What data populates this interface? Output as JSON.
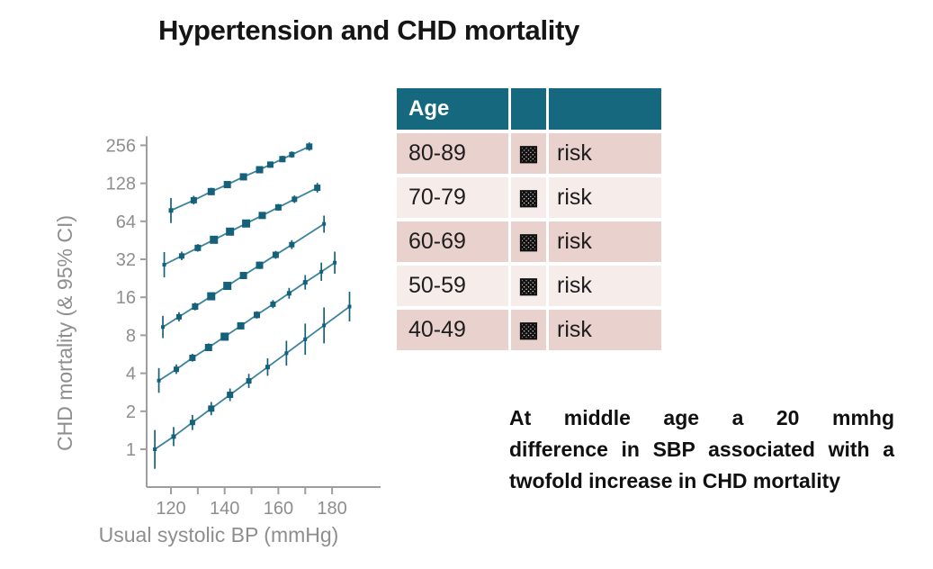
{
  "title": "Hypertension and CHD mortality",
  "colors": {
    "teal_header": "#15687e",
    "row_dark": "#e9d1cd",
    "row_light": "#f6ecea",
    "line": "#3b849b",
    "marker": "#15607a",
    "axis": "#9e9e9e",
    "axis_text": "#8e8e8e",
    "text": "#101010"
  },
  "table": {
    "columns": [
      "Age",
      "",
      ""
    ],
    "rows": [
      {
        "age": "80-89",
        "glyph": "▩",
        "label": "risk"
      },
      {
        "age": "70-79",
        "glyph": "▩",
        "label": "risk"
      },
      {
        "age": "60-69",
        "glyph": "▩",
        "label": "risk"
      },
      {
        "age": "50-59",
        "glyph": "▩",
        "label": "risk"
      },
      {
        "age": "40-49",
        "glyph": "▩",
        "label": "risk"
      }
    ]
  },
  "note": {
    "lines": [
      "At middle age a 20 mmhg",
      "difference in SBP associated with a",
      "twofold increase in CHD mortality"
    ]
  },
  "chart_data": {
    "type": "scatter",
    "title": "",
    "xlabel": "Usual systolic BP (mmHg)",
    "ylabel": "CHD mortality (& 95% CI)",
    "x_ticks_labeled": [
      120,
      140,
      160,
      180
    ],
    "x_ticks_all": [
      120,
      130,
      140,
      150,
      160,
      170,
      180
    ],
    "y_scale": "log2",
    "y_ticks": [
      1,
      2,
      4,
      8,
      16,
      32,
      64,
      128,
      256
    ],
    "xlim": [
      110,
      192
    ],
    "ylim": [
      0.6,
      300
    ],
    "grid": false,
    "legend": "none (series correspond to age groups in table, top = oldest)",
    "point_format": [
      "bp_mmHg",
      "risk",
      "ci_low",
      "ci_high",
      "marker_size_px"
    ],
    "series": [
      {
        "name": "80-89",
        "points": [
          [
            120,
            78,
            62,
            98,
            2.5
          ],
          [
            128.5,
            94,
            87,
            102,
            3.5
          ],
          [
            135,
            110,
            103,
            118,
            4
          ],
          [
            141,
            125,
            118,
            133,
            4
          ],
          [
            147,
            144,
            136,
            152,
            4
          ],
          [
            153,
            164,
            155,
            174,
            4
          ],
          [
            157,
            180,
            170,
            190,
            3.5
          ],
          [
            161.5,
            199,
            188,
            211,
            3.5
          ],
          [
            165,
            216,
            204,
            229,
            3
          ],
          [
            171.5,
            250,
            232,
            270,
            3.5
          ]
        ]
      },
      {
        "name": "70-79",
        "points": [
          [
            117.5,
            29,
            23,
            36.5,
            2
          ],
          [
            124,
            34,
            31.5,
            36.8,
            3
          ],
          [
            130,
            39.4,
            36.8,
            42.2,
            3.5
          ],
          [
            136,
            45.7,
            43,
            48.6,
            4.5
          ],
          [
            142,
            53,
            50,
            56.2,
            4.5
          ],
          [
            148,
            61.5,
            58.2,
            65,
            4.5
          ],
          [
            154,
            71.2,
            67.2,
            75.4,
            4
          ],
          [
            160,
            82.5,
            77.6,
            87.7,
            3.5
          ],
          [
            166,
            95.7,
            89.4,
            102.4,
            3
          ],
          [
            174.5,
            118,
            108,
            129,
            3.5
          ]
        ]
      },
      {
        "name": "60-69",
        "points": [
          [
            117,
            9.3,
            7.6,
            11.4,
            2
          ],
          [
            123,
            11.2,
            10.3,
            12.2,
            3
          ],
          [
            129,
            13.5,
            12.6,
            14.5,
            3.5
          ],
          [
            135,
            16.3,
            15.3,
            17.4,
            4.5
          ],
          [
            141,
            19.7,
            18.5,
            21,
            4.5
          ],
          [
            147,
            23.8,
            22.3,
            25.4,
            4
          ],
          [
            153,
            28.7,
            26.8,
            30.7,
            4
          ],
          [
            159,
            34.7,
            32.3,
            37.3,
            3.5
          ],
          [
            165,
            41.8,
            38.5,
            45.4,
            3
          ],
          [
            177,
            61,
            52,
            71,
            2
          ]
        ]
      },
      {
        "name": "50-59",
        "points": [
          [
            115.5,
            3.5,
            2.8,
            4.4,
            2
          ],
          [
            122,
            4.3,
            3.95,
            4.7,
            3
          ],
          [
            128,
            5.3,
            4.95,
            5.7,
            3.5
          ],
          [
            134,
            6.4,
            6,
            6.9,
            4
          ],
          [
            140,
            7.8,
            7.3,
            8.35,
            4.5
          ],
          [
            146,
            9.5,
            8.9,
            10.15,
            4
          ],
          [
            152,
            11.6,
            10.85,
            12.4,
            3.5
          ],
          [
            158,
            14.1,
            13.1,
            15.2,
            3
          ],
          [
            164,
            17.2,
            15.6,
            19,
            2.5
          ],
          [
            170,
            21,
            18.4,
            24,
            2.5
          ],
          [
            176,
            25.5,
            21.6,
            30.1,
            2
          ],
          [
            181,
            30.1,
            24.6,
            36.8,
            2
          ]
        ]
      },
      {
        "name": "40-49",
        "points": [
          [
            114,
            1,
            0.7,
            1.42,
            2
          ],
          [
            121,
            1.26,
            1.06,
            1.5,
            2.5
          ],
          [
            128,
            1.63,
            1.42,
            1.87,
            3
          ],
          [
            135,
            2.1,
            1.86,
            2.37,
            3.5
          ],
          [
            142,
            2.7,
            2.41,
            3.03,
            3.5
          ],
          [
            149,
            3.48,
            3.06,
            3.96,
            3
          ],
          [
            156,
            4.48,
            3.82,
            5.25,
            2.5
          ],
          [
            163,
            5.77,
            4.6,
            7.24,
            2
          ],
          [
            170,
            7.44,
            5.6,
            9.9,
            2
          ],
          [
            177,
            9.58,
            6.9,
            13.3,
            2
          ],
          [
            186.5,
            13.5,
            10.3,
            17.7,
            2
          ]
        ]
      }
    ]
  }
}
